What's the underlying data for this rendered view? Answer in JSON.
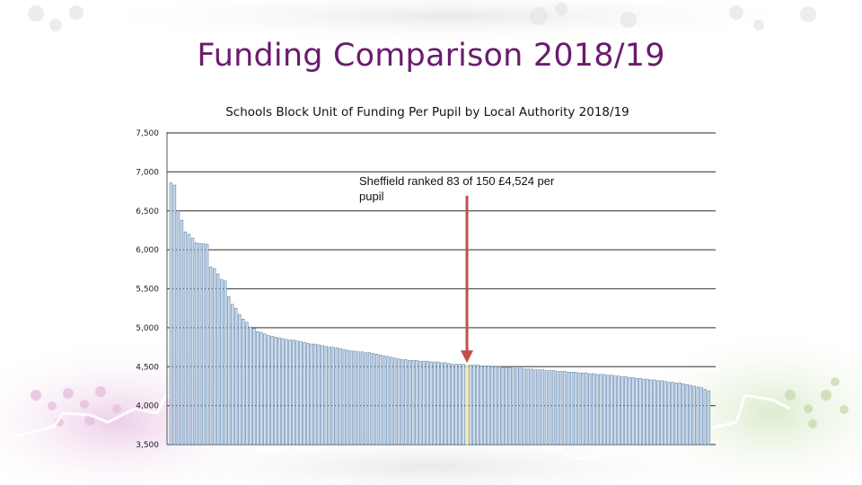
{
  "slide": {
    "title": "Funding Comparison 2018/19"
  },
  "colors": {
    "title": "#6a1b6e",
    "bar_fill": "#cfdcec",
    "bar_stroke": "#5f84ad",
    "highlight_bar": "#f2eab0",
    "arrow": "#c0504d",
    "gridline": "#555555"
  },
  "chart_data": {
    "type": "bar",
    "title": "Schools Block Unit of Funding Per Pupil by Local Authority 2018/19",
    "xlabel": "",
    "ylabel": "",
    "ylim": [
      3500,
      7500
    ],
    "yticks": [
      3500,
      4000,
      4500,
      5000,
      5500,
      6000,
      6500,
      7000,
      7500
    ],
    "ytick_labels": [
      "3,500",
      "4,000",
      "4,500",
      "5,000",
      "5,500",
      "6,000",
      "6,500",
      "7,000",
      "7,500"
    ],
    "grid": true,
    "legend": "none",
    "series": [
      {
        "values": [
          6860,
          6830,
          6500,
          6380,
          6230,
          6200,
          6150,
          6090,
          6080,
          6080,
          6070,
          5780,
          5760,
          5690,
          5620,
          5600,
          5400,
          5300,
          5250,
          5170,
          5110,
          5070,
          5010,
          4990,
          4950,
          4940,
          4920,
          4900,
          4890,
          4880,
          4870,
          4860,
          4850,
          4840,
          4840,
          4830,
          4820,
          4810,
          4800,
          4790,
          4790,
          4780,
          4770,
          4760,
          4750,
          4750,
          4740,
          4730,
          4720,
          4710,
          4700,
          4700,
          4690,
          4690,
          4680,
          4680,
          4670,
          4660,
          4650,
          4640,
          4630,
          4620,
          4610,
          4600,
          4590,
          4590,
          4580,
          4580,
          4580,
          4570,
          4570,
          4570,
          4560,
          4560,
          4560,
          4550,
          4550,
          4540,
          4530,
          4530,
          4530,
          4530,
          4524,
          4520,
          4520,
          4520,
          4510,
          4510,
          4510,
          4500,
          4500,
          4500,
          4490,
          4490,
          4490,
          4480,
          4480,
          4480,
          4470,
          4470,
          4470,
          4460,
          4460,
          4460,
          4450,
          4450,
          4450,
          4440,
          4440,
          4440,
          4430,
          4430,
          4430,
          4420,
          4420,
          4420,
          4410,
          4410,
          4400,
          4400,
          4400,
          4390,
          4390,
          4380,
          4380,
          4370,
          4370,
          4360,
          4360,
          4350,
          4350,
          4340,
          4340,
          4330,
          4330,
          4320,
          4320,
          4310,
          4300,
          4300,
          4290,
          4290,
          4280,
          4270,
          4260,
          4250,
          4240,
          4230,
          4210,
          4190
        ]
      }
    ],
    "highlight": {
      "index": 82,
      "value": 4524
    },
    "annotation": {
      "line1": "Sheffield ranked 83 of 150 £4,524 per",
      "line2": "pupil"
    }
  }
}
